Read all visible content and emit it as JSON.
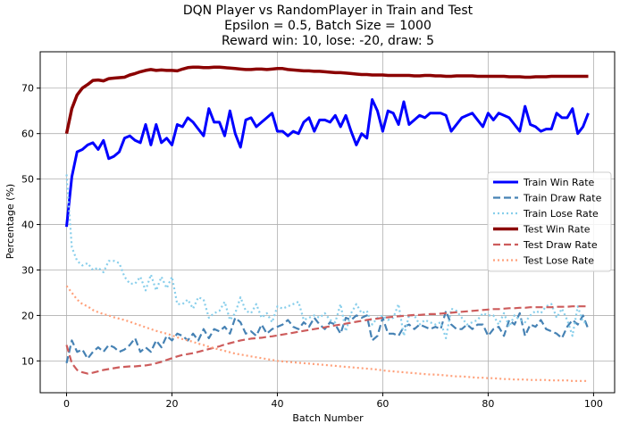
{
  "chart_data": {
    "type": "line",
    "title_lines": [
      "DQN Player vs RandomPlayer in Train and Test",
      "Epsilon = 0.5, Batch Size = 1000",
      "Reward win: 10, lose: -20, draw: 5"
    ],
    "xlabel": "Batch Number",
    "ylabel": "Percentage (%)",
    "xlim": [
      -5,
      104
    ],
    "ylim": [
      3,
      78
    ],
    "xticks": [
      0,
      20,
      40,
      60,
      80,
      100
    ],
    "yticks": [
      10,
      20,
      30,
      40,
      50,
      60,
      70
    ],
    "grid": true,
    "legend_position": "center-right",
    "x": [
      0,
      1,
      2,
      3,
      4,
      5,
      6,
      7,
      8,
      9,
      10,
      11,
      12,
      13,
      14,
      15,
      16,
      17,
      18,
      19,
      20,
      21,
      22,
      23,
      24,
      25,
      26,
      27,
      28,
      29,
      30,
      31,
      32,
      33,
      34,
      35,
      36,
      37,
      38,
      39,
      40,
      41,
      42,
      43,
      44,
      45,
      46,
      47,
      48,
      49,
      50,
      51,
      52,
      53,
      54,
      55,
      56,
      57,
      58,
      59,
      60,
      61,
      62,
      63,
      64,
      65,
      66,
      67,
      68,
      69,
      70,
      71,
      72,
      73,
      74,
      75,
      76,
      77,
      78,
      79,
      80,
      81,
      82,
      83,
      84,
      85,
      86,
      87,
      88,
      89,
      90,
      91,
      92,
      93,
      94,
      95,
      96,
      97,
      98,
      99
    ],
    "series": [
      {
        "name": "Train Win Rate",
        "color": "#0000ff",
        "style": "solid",
        "width": 3,
        "values": [
          39.5,
          50.5,
          56.0,
          56.5,
          57.5,
          58.0,
          56.5,
          58.5,
          54.5,
          55.0,
          56.0,
          59.0,
          59.5,
          58.5,
          58.0,
          62.0,
          57.5,
          62.0,
          58.0,
          59.0,
          57.5,
          62.0,
          61.5,
          63.5,
          62.5,
          61.0,
          59.5,
          65.5,
          62.5,
          62.5,
          59.5,
          65.0,
          60.0,
          57.0,
          63.0,
          63.5,
          61.5,
          62.5,
          63.5,
          64.5,
          60.5,
          60.5,
          59.5,
          60.5,
          60.0,
          62.5,
          63.5,
          60.5,
          63.0,
          63.0,
          62.5,
          64.0,
          61.5,
          64.0,
          60.5,
          57.5,
          60.0,
          59.0,
          67.5,
          65.0,
          60.5,
          65.0,
          64.5,
          62.0,
          67.0,
          62.0,
          63.0,
          64.0,
          63.5,
          64.5,
          64.5,
          64.5,
          64.0,
          60.5,
          62.0,
          63.5,
          64.0,
          64.5,
          63.0,
          61.5,
          64.5,
          63.0,
          64.5,
          64.0,
          63.5,
          62.0,
          60.5,
          66.0,
          62.0,
          61.5,
          60.5,
          61.0,
          61.0,
          64.5,
          63.5,
          63.5,
          65.5,
          60.0,
          61.5,
          64.5
        ]
      },
      {
        "name": "Train Draw Rate",
        "color": "#4682b4",
        "style": "dashed",
        "width": 2.2,
        "values": [
          9.5,
          14.5,
          12.0,
          12.5,
          10.5,
          12.0,
          13.0,
          12.0,
          13.5,
          13.0,
          12.0,
          12.5,
          13.5,
          15.0,
          12.0,
          13.0,
          12.0,
          14.5,
          13.0,
          15.5,
          14.5,
          16.0,
          15.5,
          14.5,
          16.0,
          14.5,
          17.0,
          15.0,
          17.0,
          16.5,
          17.5,
          16.0,
          19.5,
          18.5,
          16.0,
          16.5,
          15.5,
          18.0,
          16.0,
          17.0,
          17.5,
          18.0,
          19.0,
          17.5,
          17.0,
          18.5,
          17.5,
          19.5,
          18.0,
          17.0,
          18.5,
          18.0,
          16.0,
          19.5,
          19.0,
          20.0,
          19.5,
          20.0,
          14.5,
          15.5,
          19.5,
          16.0,
          16.0,
          15.5,
          17.5,
          18.0,
          17.0,
          18.0,
          17.5,
          17.0,
          17.5,
          17.0,
          21.0,
          18.0,
          17.0,
          17.0,
          18.0,
          17.0,
          18.0,
          18.0,
          15.5,
          17.0,
          17.5,
          15.5,
          19.0,
          18.0,
          20.5,
          15.5,
          18.0,
          17.5,
          19.0,
          17.0,
          16.5,
          16.0,
          15.0,
          17.5,
          19.0,
          18.0,
          20.0,
          17.0
        ]
      },
      {
        "name": "Train Lose Rate",
        "color": "#87ceeb",
        "style": "dotted",
        "width": 2.2,
        "values": [
          51.0,
          35.0,
          32.0,
          31.0,
          31.5,
          30.0,
          30.5,
          29.5,
          32.0,
          32.0,
          31.5,
          28.5,
          27.0,
          27.0,
          28.5,
          25.5,
          29.0,
          25.5,
          28.5,
          26.0,
          28.5,
          22.5,
          22.5,
          23.5,
          21.5,
          24.0,
          23.5,
          19.5,
          20.5,
          21.0,
          23.0,
          19.0,
          20.5,
          24.0,
          21.0,
          20.5,
          22.5,
          19.5,
          20.5,
          18.5,
          22.0,
          21.5,
          22.0,
          22.5,
          23.0,
          19.0,
          19.5,
          20.0,
          19.5,
          20.5,
          19.0,
          18.5,
          22.5,
          16.5,
          20.5,
          22.5,
          20.5,
          21.0,
          18.0,
          19.5,
          20.0,
          19.0,
          19.5,
          22.5,
          15.5,
          20.0,
          20.0,
          18.0,
          19.0,
          18.5,
          18.0,
          18.5,
          15.0,
          21.5,
          21.0,
          19.5,
          18.0,
          18.5,
          19.0,
          20.5,
          20.0,
          20.0,
          18.0,
          20.5,
          17.5,
          20.0,
          19.0,
          18.5,
          20.0,
          21.0,
          20.5,
          22.0,
          22.5,
          19.5,
          21.5,
          19.0,
          15.5,
          22.0,
          18.5,
          18.5
        ]
      },
      {
        "name": "Test Win Rate",
        "color": "#8b0000",
        "style": "solid",
        "width": 3.5,
        "values": [
          60.0,
          65.5,
          68.5,
          70.0,
          70.8,
          71.7,
          71.8,
          71.6,
          72.1,
          72.2,
          72.3,
          72.4,
          72.9,
          73.2,
          73.6,
          73.9,
          74.1,
          73.9,
          74.0,
          73.9,
          73.9,
          73.8,
          74.2,
          74.5,
          74.6,
          74.6,
          74.5,
          74.5,
          74.6,
          74.6,
          74.5,
          74.4,
          74.3,
          74.2,
          74.1,
          74.1,
          74.2,
          74.2,
          74.1,
          74.2,
          74.3,
          74.3,
          74.1,
          74.0,
          73.9,
          73.8,
          73.8,
          73.7,
          73.7,
          73.6,
          73.5,
          73.4,
          73.4,
          73.3,
          73.2,
          73.1,
          73.0,
          73.0,
          72.9,
          72.9,
          72.9,
          72.8,
          72.8,
          72.8,
          72.8,
          72.8,
          72.7,
          72.7,
          72.8,
          72.8,
          72.7,
          72.7,
          72.6,
          72.6,
          72.7,
          72.7,
          72.7,
          72.7,
          72.6,
          72.6,
          72.6,
          72.6,
          72.6,
          72.6,
          72.5,
          72.5,
          72.5,
          72.4,
          72.4,
          72.5,
          72.5,
          72.5,
          72.6,
          72.6,
          72.6,
          72.6,
          72.6,
          72.6,
          72.6,
          72.6
        ]
      },
      {
        "name": "Test Draw Rate",
        "color": "#cd5c5c",
        "style": "dashed",
        "width": 2.2,
        "values": [
          13.5,
          9.5,
          8.0,
          7.5,
          7.2,
          7.4,
          7.7,
          8.0,
          8.2,
          8.4,
          8.6,
          8.7,
          8.8,
          8.8,
          8.9,
          9.0,
          9.2,
          9.5,
          9.8,
          10.2,
          10.6,
          11.0,
          11.3,
          11.5,
          11.7,
          12.0,
          12.3,
          12.6,
          12.9,
          13.2,
          13.6,
          13.9,
          14.2,
          14.5,
          14.7,
          14.9,
          15.0,
          15.1,
          15.3,
          15.4,
          15.6,
          15.8,
          16.0,
          16.2,
          16.4,
          16.6,
          16.8,
          17.0,
          17.2,
          17.4,
          17.6,
          17.8,
          18.0,
          18.2,
          18.4,
          18.6,
          18.8,
          19.0,
          19.2,
          19.3,
          19.5,
          19.6,
          19.7,
          19.8,
          19.9,
          20.0,
          20.1,
          20.1,
          20.2,
          20.3,
          20.3,
          20.4,
          20.5,
          20.6,
          20.7,
          20.8,
          20.9,
          21.0,
          21.1,
          21.2,
          21.3,
          21.4,
          21.4,
          21.5,
          21.6,
          21.6,
          21.7,
          21.7,
          21.8,
          21.8,
          21.8,
          21.8,
          21.8,
          21.9,
          21.9,
          21.9,
          22.0,
          22.0,
          22.0,
          22.0
        ]
      },
      {
        "name": "Test Lose Rate",
        "color": "#ffa07a",
        "style": "dotted",
        "width": 2.2,
        "values": [
          26.5,
          25.0,
          23.5,
          22.5,
          22.0,
          21.2,
          20.7,
          20.3,
          20.0,
          19.6,
          19.3,
          19.0,
          18.6,
          18.2,
          17.8,
          17.4,
          17.0,
          16.6,
          16.3,
          16.0,
          15.6,
          15.2,
          14.8,
          14.5,
          14.2,
          13.8,
          13.5,
          13.1,
          12.8,
          12.5,
          12.2,
          11.9,
          11.6,
          11.4,
          11.2,
          11.0,
          10.8,
          10.6,
          10.4,
          10.2,
          10.0,
          9.9,
          9.8,
          9.7,
          9.6,
          9.5,
          9.4,
          9.3,
          9.2,
          9.1,
          9.0,
          8.9,
          8.8,
          8.7,
          8.6,
          8.5,
          8.4,
          8.3,
          8.2,
          8.1,
          7.9,
          7.8,
          7.7,
          7.6,
          7.5,
          7.4,
          7.3,
          7.2,
          7.1,
          7.0,
          7.0,
          6.9,
          6.8,
          6.7,
          6.6,
          6.6,
          6.5,
          6.4,
          6.3,
          6.3,
          6.2,
          6.2,
          6.1,
          6.0,
          6.0,
          5.9,
          5.9,
          5.9,
          5.8,
          5.8,
          5.8,
          5.8,
          5.7,
          5.7,
          5.7,
          5.7,
          5.6,
          5.6,
          5.6,
          5.6
        ]
      }
    ]
  }
}
